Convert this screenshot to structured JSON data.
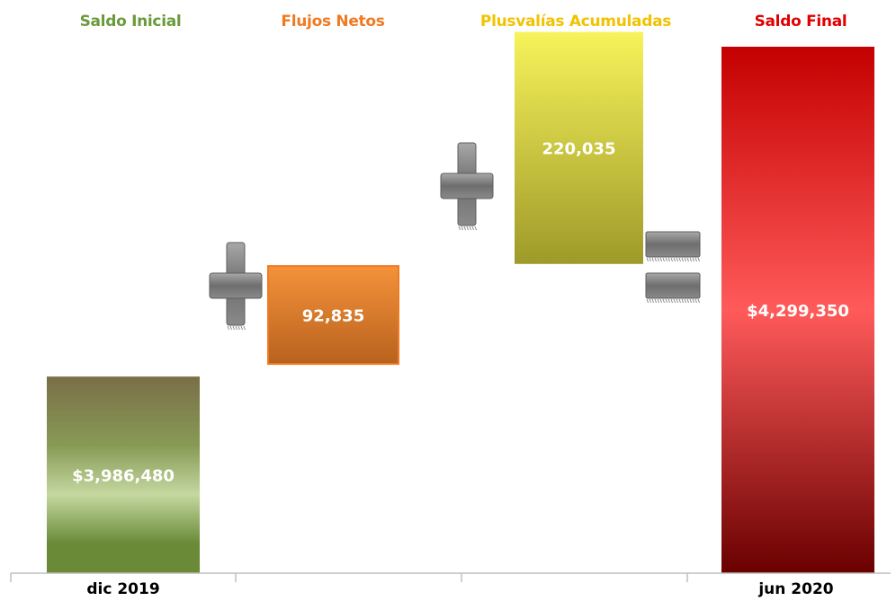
{
  "headers": {
    "initial": "Saldo Inicial",
    "flows": "Flujos Netos",
    "gains": "Plusvalías Acumuladas",
    "final": "Saldo Final"
  },
  "colors": {
    "initial_header": "#6a9a3a",
    "flows_header": "#f07a22",
    "gains_header": "#f2c200",
    "final_header": "#e00000"
  },
  "chart_data": {
    "type": "bar",
    "subtype": "waterfall",
    "categories": [
      "dic 2019",
      "",
      "",
      "jun 2020"
    ],
    "values": [
      3986480,
      92835,
      220035,
      4299350
    ],
    "value_labels": [
      "$3,986,480",
      "92,835",
      "220,035",
      "$4,299,350"
    ],
    "operators": [
      "plus",
      "plus",
      "equals"
    ],
    "baseline": 3800000,
    "ylim": [
      3800000,
      4299350
    ],
    "grid": false,
    "legend": "none"
  }
}
